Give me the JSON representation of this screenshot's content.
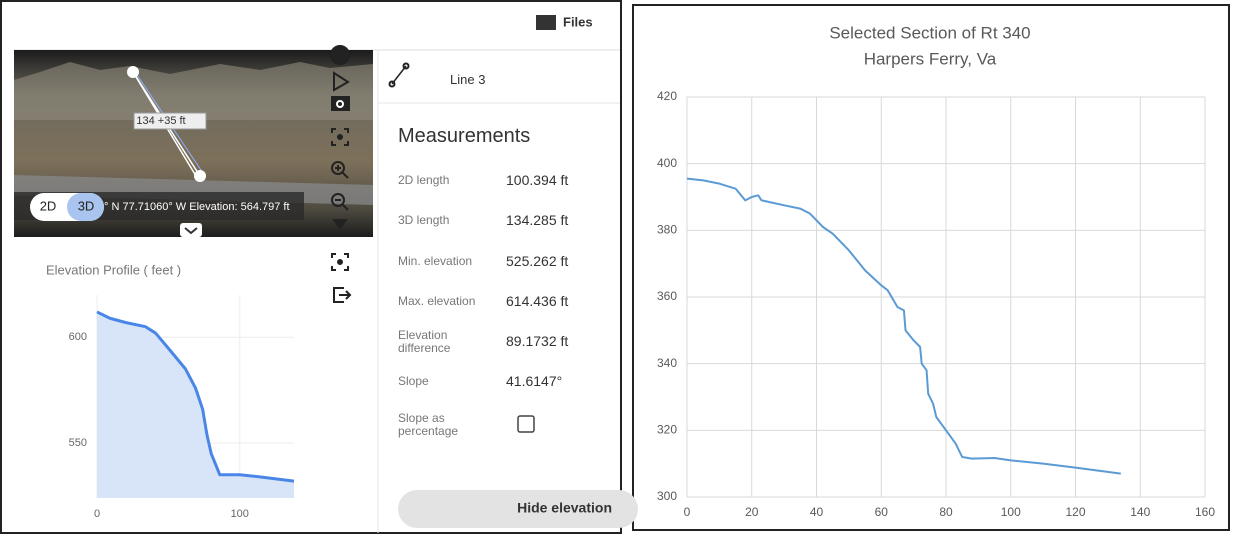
{
  "toolbar": {
    "files": "Files"
  },
  "viewer": {
    "distance": "134 +35 ft",
    "mode_2d": "2D",
    "mode_3d": "3D",
    "status": "° N 77.71060° W  Elevation: 564.797 ft"
  },
  "sidebar": {
    "line_name": "Line 3",
    "title": "Measurements",
    "rows": [
      {
        "label": "2D length",
        "value": "100.394 ft"
      },
      {
        "label": "3D length",
        "value": "134.285 ft"
      },
      {
        "label": "Min. elevation",
        "value": "525.262 ft"
      },
      {
        "label": "Max. elevation",
        "value": "614.436 ft"
      },
      {
        "label": "Elevation difference",
        "value": "89.1732 ft"
      },
      {
        "label": "Slope",
        "value": "41.6147°"
      },
      {
        "label": "Slope as percentage"
      }
    ],
    "button": "Hide elevation"
  },
  "chart_data": [
    {
      "type": "area",
      "title": "Elevation Profile ( feet )",
      "color": "#4a86e8",
      "fill": "#d8e5f8",
      "x": [
        0,
        9,
        20,
        34,
        41,
        51,
        62,
        69,
        74,
        77,
        80,
        86,
        90,
        100,
        114,
        138
      ],
      "values": [
        612,
        609,
        607,
        605,
        602,
        594,
        585,
        576,
        566,
        554,
        545,
        535,
        535,
        535,
        534,
        532
      ],
      "xlim": [
        0,
        138
      ],
      "ylim": [
        524,
        620
      ],
      "xticks": [
        0,
        100
      ],
      "yticks": [
        550,
        600
      ],
      "grid": true
    },
    {
      "type": "line",
      "title": "Selected Section of Rt 340",
      "subtitle": "Harpers Ferry, Va",
      "color": "#5b9bd5",
      "x": [
        0,
        5,
        10,
        15,
        18,
        20,
        22,
        23,
        30,
        35,
        38,
        40,
        42,
        45,
        48,
        50,
        55,
        60,
        62,
        65,
        67,
        67.5,
        70,
        72,
        72.5,
        74,
        74.5,
        76,
        77,
        80,
        83,
        85,
        88,
        95,
        100,
        110,
        120,
        134
      ],
      "values": [
        395.5,
        395,
        394,
        392.5,
        389,
        390,
        390.5,
        389,
        387.5,
        386.5,
        385,
        383,
        381,
        379,
        376,
        374,
        368,
        363.5,
        362,
        357,
        356,
        350,
        347,
        345,
        340,
        338,
        331,
        328,
        324,
        320,
        316,
        312,
        311.5,
        311.7,
        311,
        310,
        308.8,
        307
      ],
      "xlim": [
        0,
        160
      ],
      "ylim": [
        300,
        420
      ],
      "xticks": [
        0,
        20,
        40,
        60,
        80,
        100,
        120,
        140,
        160
      ],
      "yticks": [
        300,
        320,
        340,
        360,
        380,
        400,
        420
      ],
      "grid": true
    }
  ]
}
